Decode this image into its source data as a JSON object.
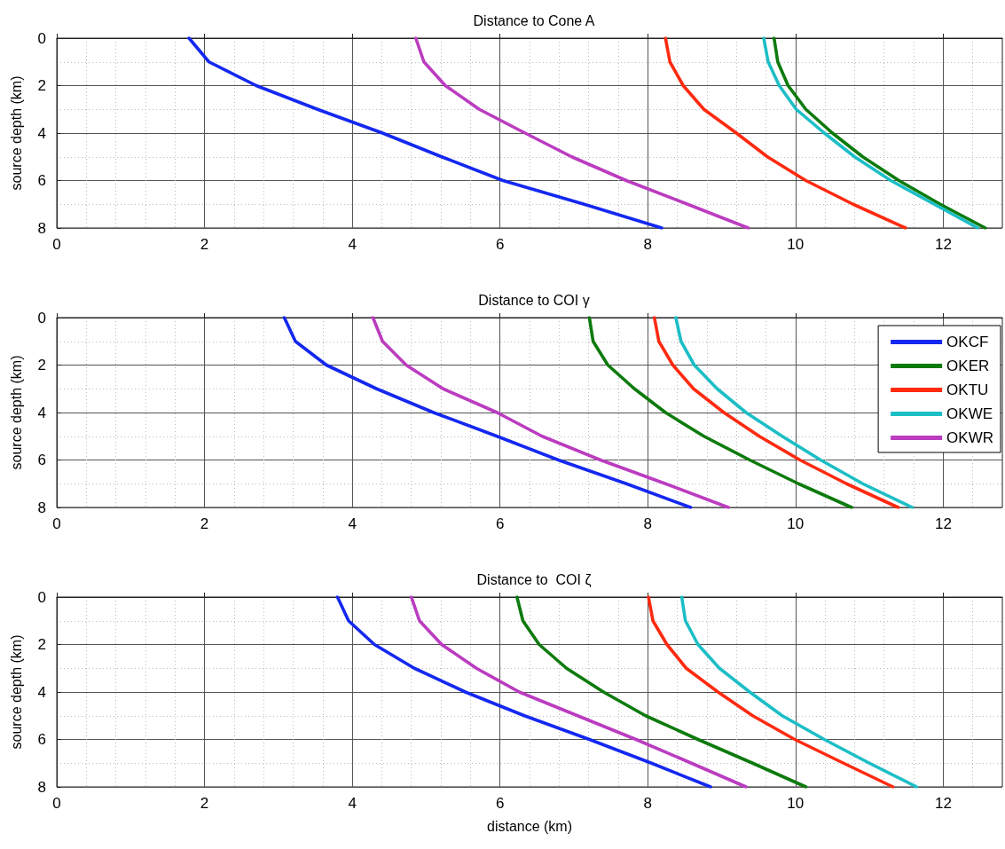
{
  "chart_data": [
    {
      "type": "line",
      "title": "Distance to Cone A",
      "ylabel": "source depth (km)",
      "xlim": [
        0,
        12.8
      ],
      "xticks": [
        0,
        2,
        4,
        6,
        8,
        10,
        12
      ],
      "ylim": [
        8,
        0
      ],
      "yticks": [
        0,
        2,
        4,
        6,
        8
      ],
      "grid": true,
      "legend": false,
      "marker": "none",
      "line_style": "solid",
      "series": [
        {
          "color": "#1428f0",
          "x": [
            1.79,
            2.06,
            2.7,
            3.53,
            4.41,
            5.21,
            6.04,
            7.14,
            8.19
          ],
          "values": [
            0,
            1,
            2,
            3,
            4,
            5,
            6,
            7,
            8
          ]
        },
        {
          "color": "#0d7a0d",
          "x": [
            9.71,
            9.76,
            9.9,
            10.14,
            10.5,
            10.91,
            11.4,
            11.96,
            12.57
          ],
          "values": [
            0,
            1,
            2,
            3,
            4,
            5,
            6,
            7,
            8
          ]
        },
        {
          "color": "#ff2a10",
          "x": [
            8.24,
            8.3,
            8.48,
            8.76,
            9.2,
            9.62,
            10.14,
            10.78,
            11.49
          ],
          "values": [
            0,
            1,
            2,
            3,
            4,
            5,
            6,
            7,
            8
          ]
        },
        {
          "color": "#1cbec6",
          "x": [
            9.57,
            9.63,
            9.78,
            10.01,
            10.39,
            10.8,
            11.29,
            11.88,
            12.47
          ],
          "values": [
            0,
            1,
            2,
            3,
            4,
            5,
            6,
            7,
            8
          ]
        },
        {
          "color": "#bb3cc0",
          "x": [
            4.86,
            4.97,
            5.26,
            5.72,
            6.34,
            6.97,
            7.71,
            8.54,
            9.36
          ],
          "values": [
            0,
            1,
            2,
            3,
            4,
            5,
            6,
            7,
            8
          ]
        }
      ]
    },
    {
      "type": "line",
      "title": "Distance to COI γ",
      "ylabel": "source depth (km)",
      "xlim": [
        0,
        12.8
      ],
      "xticks": [
        0,
        2,
        4,
        6,
        8,
        10,
        12
      ],
      "ylim": [
        8,
        0
      ],
      "yticks": [
        0,
        2,
        4,
        6,
        8
      ],
      "grid": true,
      "legend": "top right",
      "marker": "none",
      "line_style": "solid",
      "series": [
        {
          "name": "OKCF",
          "color": "#1428f0",
          "x": [
            3.08,
            3.23,
            3.65,
            4.33,
            5.1,
            5.96,
            6.79,
            7.71,
            8.58
          ],
          "values": [
            0,
            1,
            2,
            3,
            4,
            5,
            6,
            7,
            8
          ]
        },
        {
          "name": "OKER",
          "color": "#0d7a0d",
          "x": [
            7.21,
            7.26,
            7.46,
            7.82,
            8.24,
            8.76,
            9.38,
            10.04,
            10.76
          ],
          "values": [
            0,
            1,
            2,
            3,
            4,
            5,
            6,
            7,
            8
          ]
        },
        {
          "name": "OKTU",
          "color": "#ff2a10",
          "x": [
            8.09,
            8.15,
            8.34,
            8.62,
            9.03,
            9.51,
            10.06,
            10.69,
            11.39
          ],
          "values": [
            0,
            1,
            2,
            3,
            4,
            5,
            6,
            7,
            8
          ]
        },
        {
          "name": "OKWE",
          "color": "#1cbec6",
          "x": [
            8.38,
            8.45,
            8.63,
            8.94,
            9.33,
            9.82,
            10.34,
            10.91,
            11.58
          ],
          "values": [
            0,
            1,
            2,
            3,
            4,
            5,
            6,
            7,
            8
          ]
        },
        {
          "name": "OKWR",
          "color": "#bb3cc0",
          "x": [
            4.28,
            4.41,
            4.73,
            5.23,
            5.96,
            6.57,
            7.36,
            8.24,
            9.09
          ],
          "values": [
            0,
            1,
            2,
            3,
            4,
            5,
            6,
            7,
            8
          ]
        }
      ]
    },
    {
      "type": "line",
      "title": "Distance to  COI ζ",
      "xlabel": "distance (km)",
      "ylabel": "source depth (km)",
      "xlim": [
        0,
        12.8
      ],
      "xticks": [
        0,
        2,
        4,
        6,
        8,
        10,
        12
      ],
      "ylim": [
        8,
        0
      ],
      "yticks": [
        0,
        2,
        4,
        6,
        8
      ],
      "grid": true,
      "legend": false,
      "marker": "none",
      "line_style": "solid",
      "series": [
        {
          "color": "#1428f0",
          "x": [
            3.8,
            3.95,
            4.3,
            4.84,
            5.53,
            6.33,
            7.21,
            8.05,
            8.85
          ],
          "values": [
            0,
            1,
            2,
            3,
            4,
            5,
            6,
            7,
            8
          ]
        },
        {
          "color": "#0d7a0d",
          "x": [
            6.23,
            6.31,
            6.53,
            6.9,
            7.4,
            7.97,
            8.68,
            9.42,
            10.14
          ],
          "values": [
            0,
            1,
            2,
            3,
            4,
            5,
            6,
            7,
            8
          ]
        },
        {
          "color": "#ff2a10",
          "x": [
            8.01,
            8.07,
            8.26,
            8.52,
            8.95,
            9.42,
            9.99,
            10.65,
            11.32
          ],
          "values": [
            0,
            1,
            2,
            3,
            4,
            5,
            6,
            7,
            8
          ]
        },
        {
          "color": "#1cbec6",
          "x": [
            8.46,
            8.51,
            8.68,
            8.97,
            9.38,
            9.82,
            10.39,
            11.0,
            11.64
          ],
          "values": [
            0,
            1,
            2,
            3,
            4,
            5,
            6,
            7,
            8
          ]
        },
        {
          "color": "#bb3cc0",
          "x": [
            4.8,
            4.91,
            5.21,
            5.68,
            6.26,
            7.05,
            7.84,
            8.59,
            9.33
          ],
          "values": [
            0,
            1,
            2,
            3,
            4,
            5,
            6,
            7,
            8
          ]
        }
      ]
    }
  ]
}
